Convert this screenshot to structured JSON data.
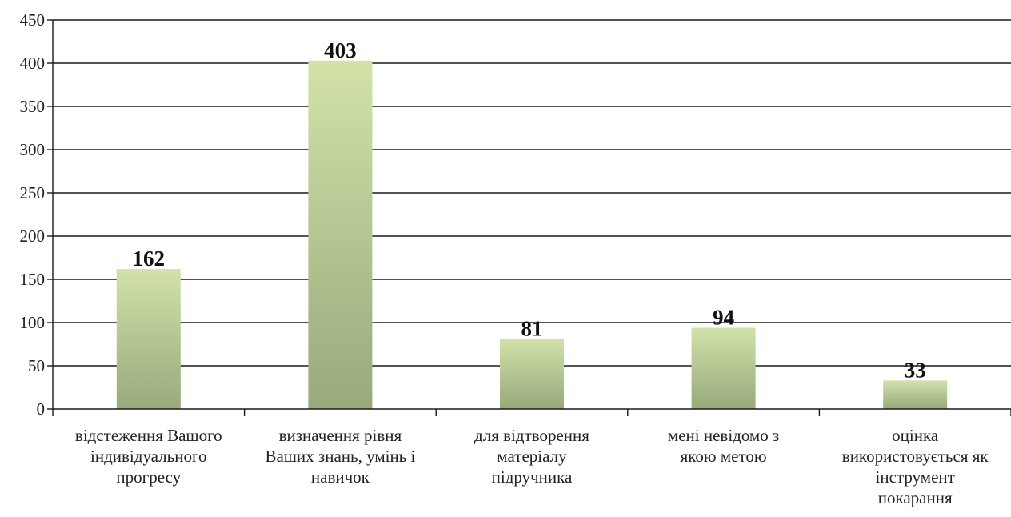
{
  "chart_data": {
    "type": "bar",
    "categories": [
      [
        "відстеження Вашого",
        "індивідуального",
        "прогресу"
      ],
      [
        "визначення рівня",
        "Ваших знань, умінь і",
        "навичок"
      ],
      [
        "для відтворення",
        "матеріалу",
        "підручника"
      ],
      [
        "мені невідомо з",
        "якою метою"
      ],
      [
        "оцінка",
        "використовується як",
        "інструмент",
        "покарання"
      ]
    ],
    "values": [
      162,
      403,
      81,
      94,
      33
    ],
    "ylim": [
      0,
      450
    ],
    "yticks": [
      0,
      50,
      100,
      150,
      200,
      250,
      300,
      350,
      400,
      450
    ],
    "grid": true,
    "legend": "none",
    "colors": {
      "bar_top": "#d2e2a9",
      "bar_bottom": "#98a97c",
      "grid": "#1a1a1a",
      "axis": "#1a1a1a"
    }
  }
}
